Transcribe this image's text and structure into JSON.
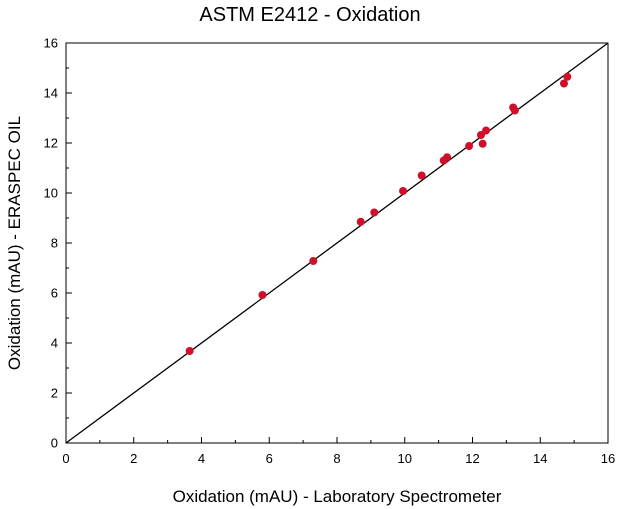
{
  "chart_data": {
    "type": "scatter",
    "title": "ASTM E2412 - Oxidation",
    "xlabel": "Oxidation (mAU) - Laboratory Spectrometer",
    "ylabel": "Oxidation (mAU) - ERASPEC OIL",
    "xlim": [
      0,
      16
    ],
    "ylim": [
      0,
      16
    ],
    "x_ticks": [
      "0",
      "2",
      "4",
      "6",
      "8",
      "10",
      "12",
      "14",
      "16"
    ],
    "y_ticks": [
      "0",
      "2",
      "4",
      "6",
      "8",
      "10",
      "12",
      "14",
      "16"
    ],
    "grid": false,
    "reference_line": {
      "x": [
        0,
        16
      ],
      "y": [
        0,
        16
      ],
      "color": "#000000"
    },
    "marker_color": "#d0102a",
    "points": [
      {
        "x": 3.65,
        "y": 3.68
      },
      {
        "x": 5.8,
        "y": 5.92
      },
      {
        "x": 7.3,
        "y": 7.28
      },
      {
        "x": 8.7,
        "y": 8.85
      },
      {
        "x": 9.1,
        "y": 9.22
      },
      {
        "x": 9.95,
        "y": 10.08
      },
      {
        "x": 10.5,
        "y": 10.7
      },
      {
        "x": 11.15,
        "y": 11.3
      },
      {
        "x": 11.25,
        "y": 11.43
      },
      {
        "x": 11.9,
        "y": 11.88
      },
      {
        "x": 12.25,
        "y": 12.32
      },
      {
        "x": 12.3,
        "y": 11.97
      },
      {
        "x": 12.4,
        "y": 12.5
      },
      {
        "x": 13.2,
        "y": 13.42
      },
      {
        "x": 13.25,
        "y": 13.3
      },
      {
        "x": 14.7,
        "y": 14.38
      },
      {
        "x": 14.8,
        "y": 14.65
      }
    ]
  }
}
